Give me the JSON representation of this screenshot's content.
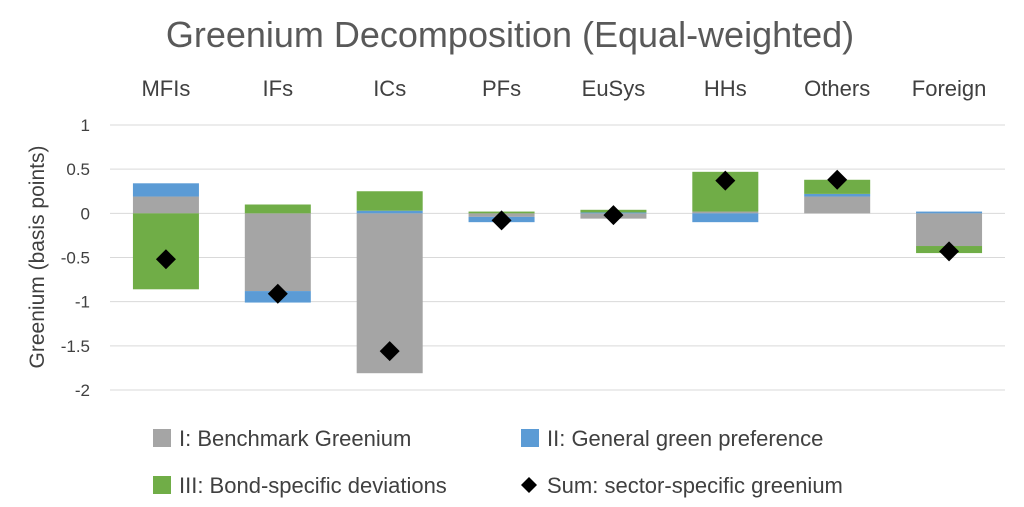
{
  "chart_data": {
    "type": "bar",
    "stacked": true,
    "title": "Greenium Decomposition (Equal-weighted)",
    "xlabel": "",
    "ylabel": "Greenium (basis points)",
    "ylim": [
      -2,
      1
    ],
    "yticks": [
      1,
      0.5,
      0,
      -0.5,
      -1,
      -1.5,
      -2
    ],
    "ytick_labels": [
      "1",
      "0.5",
      "0",
      "-0.5",
      "-1",
      "-1.5",
      "-2"
    ],
    "grid": true,
    "category_position": "top",
    "legend_position": "bottom",
    "categories": [
      "MFIs",
      "IFs",
      "ICs",
      "PFs",
      "EuSys",
      "HHs",
      "Others",
      "Foreign"
    ],
    "series": [
      {
        "name": "I: Benchmark Greenium",
        "color": "#a5a5a5",
        "kind": "bar",
        "values": [
          0.19,
          -0.88,
          -1.81,
          -0.04,
          -0.06,
          0.02,
          0.19,
          -0.37
        ]
      },
      {
        "name": "II: General green preference",
        "color": "#5b9bd5",
        "kind": "bar",
        "values": [
          0.15,
          -0.13,
          0.03,
          -0.06,
          0.01,
          -0.1,
          0.03,
          0.02
        ]
      },
      {
        "name": "III: Bond-specific deviations",
        "color": "#70ad47",
        "kind": "bar",
        "values": [
          -0.86,
          0.1,
          0.22,
          0.02,
          0.03,
          0.45,
          0.16,
          -0.08
        ]
      },
      {
        "name": "Sum: sector-specific greenium",
        "color": "#000000",
        "kind": "marker",
        "values": [
          -0.52,
          -0.91,
          -1.56,
          -0.08,
          -0.02,
          0.37,
          0.38,
          -0.43
        ]
      }
    ]
  }
}
